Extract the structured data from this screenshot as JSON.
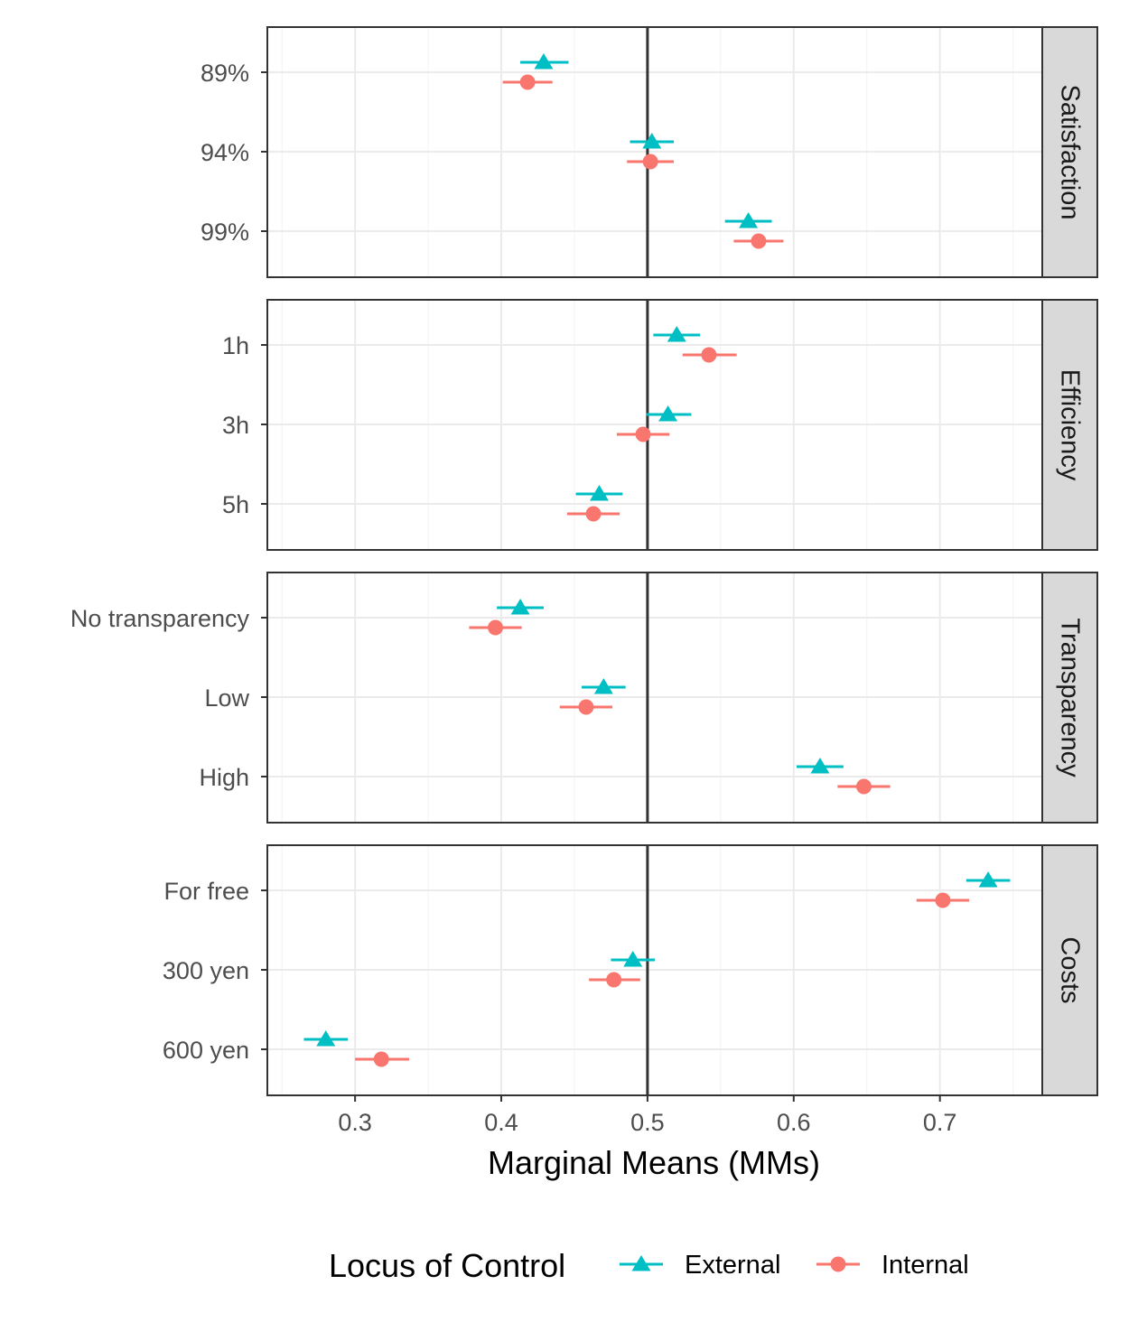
{
  "chart_data": {
    "type": "scatter",
    "xlabel": "Marginal Means (MMs)",
    "xlim": [
      0.24,
      0.77
    ],
    "x_ticks": [
      "0.3",
      "0.4",
      "0.5",
      "0.6",
      "0.7"
    ],
    "x_tick_values": [
      0.3,
      0.4,
      0.5,
      0.6,
      0.7
    ],
    "reference_line": 0.5,
    "grid": true,
    "legend": {
      "title": "Locus of Control",
      "position": "bottom",
      "entries": [
        {
          "name": "External",
          "color": "#00BFC4",
          "shape": "triangle"
        },
        {
          "name": "Internal",
          "color": "#F8766D",
          "shape": "circle"
        }
      ]
    },
    "panels": [
      {
        "strip": "Satisfaction",
        "levels": [
          "89%",
          "94%",
          "99%"
        ],
        "series": [
          {
            "name": "External",
            "points": [
              {
                "level": "89%",
                "x": 0.429,
                "lo": 0.413,
                "hi": 0.446
              },
              {
                "level": "94%",
                "x": 0.503,
                "lo": 0.488,
                "hi": 0.518
              },
              {
                "level": "99%",
                "x": 0.569,
                "lo": 0.553,
                "hi": 0.585
              }
            ]
          },
          {
            "name": "Internal",
            "points": [
              {
                "level": "89%",
                "x": 0.418,
                "lo": 0.401,
                "hi": 0.435
              },
              {
                "level": "94%",
                "x": 0.502,
                "lo": 0.486,
                "hi": 0.518
              },
              {
                "level": "99%",
                "x": 0.576,
                "lo": 0.559,
                "hi": 0.593
              }
            ]
          }
        ]
      },
      {
        "strip": "Efficiency",
        "levels": [
          "1h",
          "3h",
          "5h"
        ],
        "series": [
          {
            "name": "External",
            "points": [
              {
                "level": "1h",
                "x": 0.52,
                "lo": 0.504,
                "hi": 0.536
              },
              {
                "level": "3h",
                "x": 0.514,
                "lo": 0.499,
                "hi": 0.53
              },
              {
                "level": "5h",
                "x": 0.467,
                "lo": 0.451,
                "hi": 0.483
              }
            ]
          },
          {
            "name": "Internal",
            "points": [
              {
                "level": "1h",
                "x": 0.542,
                "lo": 0.524,
                "hi": 0.561
              },
              {
                "level": "3h",
                "x": 0.497,
                "lo": 0.479,
                "hi": 0.515
              },
              {
                "level": "5h",
                "x": 0.463,
                "lo": 0.445,
                "hi": 0.481
              }
            ]
          }
        ]
      },
      {
        "strip": "Transparency",
        "levels": [
          "No transparency",
          "Low",
          "High"
        ],
        "series": [
          {
            "name": "External",
            "points": [
              {
                "level": "No transparency",
                "x": 0.413,
                "lo": 0.397,
                "hi": 0.429
              },
              {
                "level": "Low",
                "x": 0.47,
                "lo": 0.455,
                "hi": 0.485
              },
              {
                "level": "High",
                "x": 0.618,
                "lo": 0.602,
                "hi": 0.634
              }
            ]
          },
          {
            "name": "Internal",
            "points": [
              {
                "level": "No transparency",
                "x": 0.396,
                "lo": 0.378,
                "hi": 0.414
              },
              {
                "level": "Low",
                "x": 0.458,
                "lo": 0.44,
                "hi": 0.476
              },
              {
                "level": "High",
                "x": 0.648,
                "lo": 0.63,
                "hi": 0.666
              }
            ]
          }
        ]
      },
      {
        "strip": "Costs",
        "levels": [
          "For free",
          "300 yen",
          "600 yen"
        ],
        "series": [
          {
            "name": "External",
            "points": [
              {
                "level": "For free",
                "x": 0.733,
                "lo": 0.718,
                "hi": 0.748
              },
              {
                "level": "300 yen",
                "x": 0.49,
                "lo": 0.475,
                "hi": 0.505
              },
              {
                "level": "600 yen",
                "x": 0.28,
                "lo": 0.265,
                "hi": 0.295
              }
            ]
          },
          {
            "name": "Internal",
            "points": [
              {
                "level": "For free",
                "x": 0.702,
                "lo": 0.684,
                "hi": 0.72
              },
              {
                "level": "300 yen",
                "x": 0.477,
                "lo": 0.46,
                "hi": 0.495
              },
              {
                "level": "600 yen",
                "x": 0.318,
                "lo": 0.3,
                "hi": 0.337
              }
            ]
          }
        ]
      }
    ]
  }
}
